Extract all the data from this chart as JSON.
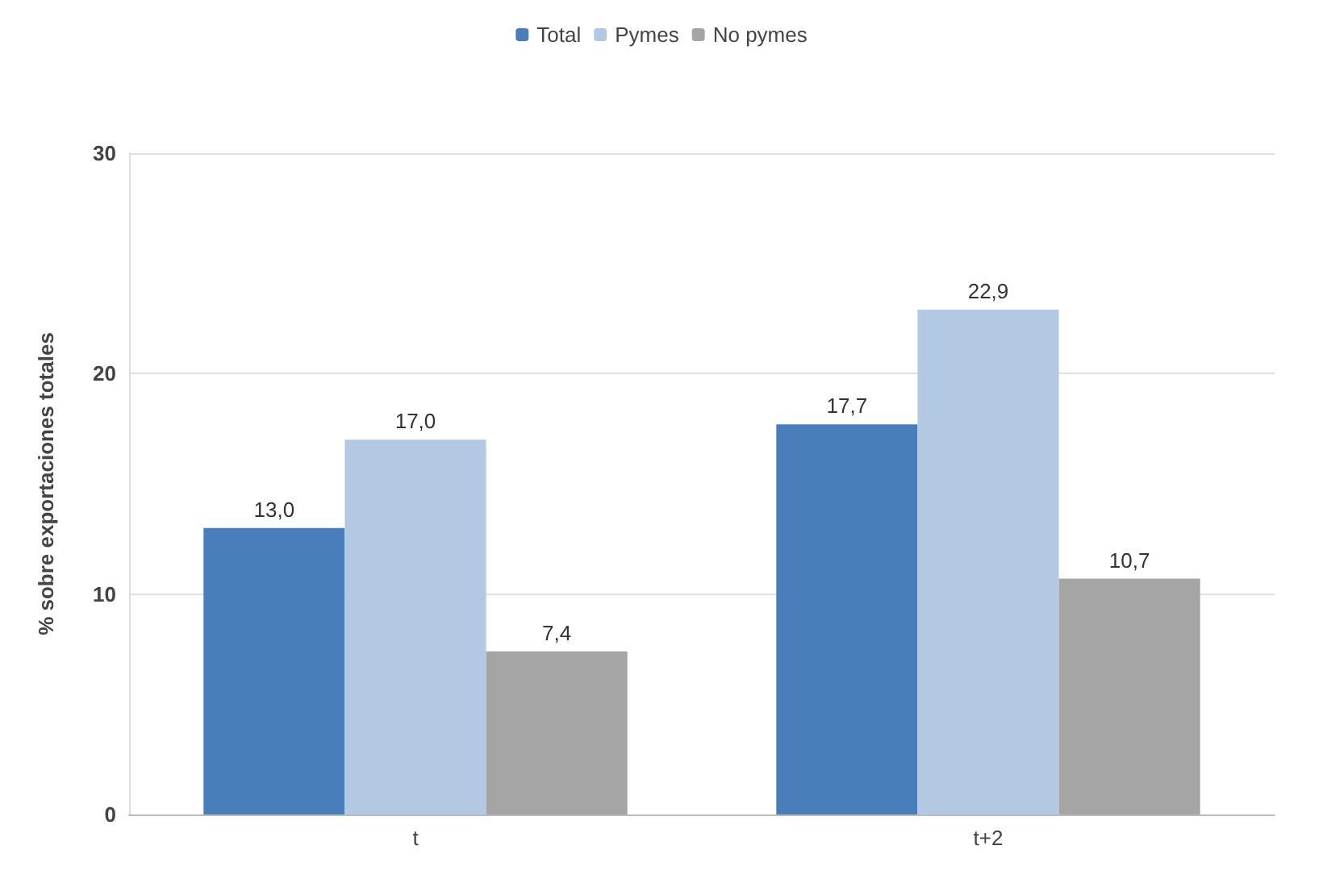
{
  "chart_data": {
    "type": "bar",
    "ylabel": "% sobre exportaciones totales",
    "categories": [
      "t",
      "t+2"
    ],
    "series": [
      {
        "name": "Total",
        "color": "#4a7ebb",
        "values": [
          13.0,
          17.7
        ],
        "value_labels": [
          "13,0",
          "17,7"
        ]
      },
      {
        "name": "Pymes",
        "color": "#b3c8e3",
        "values": [
          17.0,
          22.9
        ],
        "value_labels": [
          "17,0",
          "22,9"
        ]
      },
      {
        "name": "No pymes",
        "color": "#a5a5a5",
        "values": [
          7.4,
          10.7
        ],
        "value_labels": [
          "7,4",
          "10,7"
        ]
      }
    ],
    "ylim": [
      0,
      30
    ],
    "yticks": [
      0,
      10,
      20,
      30
    ],
    "grid": "y",
    "legend": "top"
  }
}
